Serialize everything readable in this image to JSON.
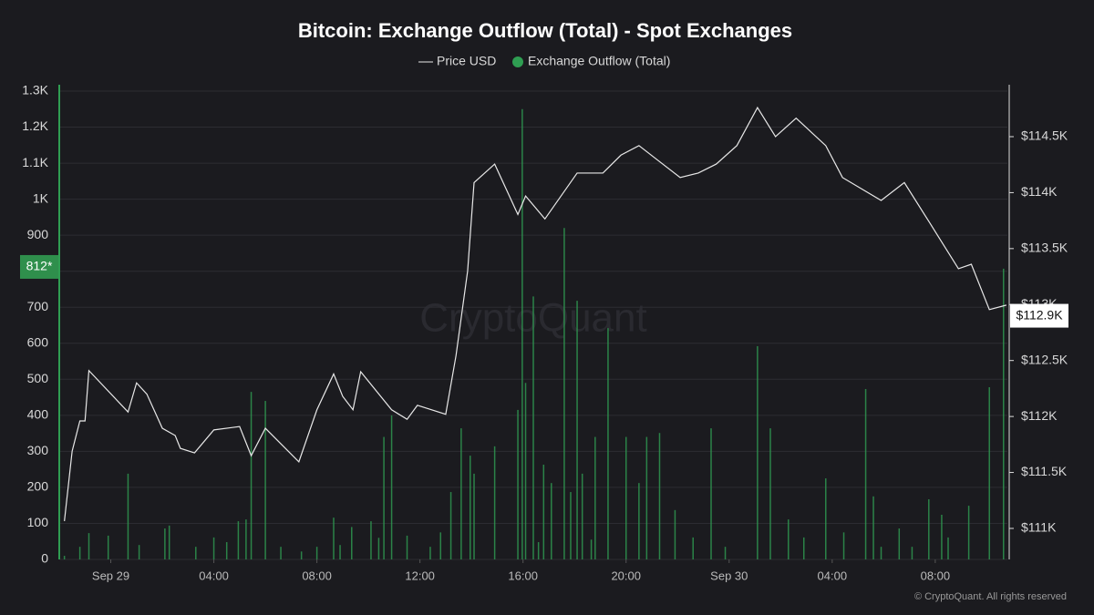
{
  "chart_data": {
    "type": "bar_line",
    "title": "Bitcoin: Exchange Outflow (Total) - Spot Exchanges",
    "watermark": "CryptoQuant",
    "footer": "© CryptoQuant. All rights reserved",
    "xlim": [
      -2,
      34.8
    ],
    "xticks": [
      {
        "value": 0,
        "label": "Sep 29"
      },
      {
        "value": 4,
        "label": "04:00"
      },
      {
        "value": 8,
        "label": "08:00"
      },
      {
        "value": 12,
        "label": "12:00"
      },
      {
        "value": 16,
        "label": "16:00"
      },
      {
        "value": 20,
        "label": "20:00"
      },
      {
        "value": 24,
        "label": "Sep 30"
      },
      {
        "value": 28,
        "label": "04:00"
      },
      {
        "value": 32,
        "label": "08:00"
      }
    ],
    "ylim": [
      0,
      1300
    ],
    "yticks": [
      0,
      100,
      200,
      300,
      400,
      500,
      600,
      700,
      800,
      900,
      {
        "value": 1000,
        "label": "1K"
      },
      {
        "value": 1100,
        "label": "1.1K"
      },
      {
        "value": 1200,
        "label": "1.2K"
      },
      {
        "value": 1300,
        "label": "1.3K"
      }
    ],
    "y2lim": [
      110723,
      114907
    ],
    "y2ticks": [
      {
        "value": 111000,
        "label": "$111K"
      },
      {
        "value": 111500,
        "label": "$111.5K"
      },
      {
        "value": 112000,
        "label": "$112K"
      },
      {
        "value": 112500,
        "label": "$112.5K"
      },
      {
        "value": 113000,
        "label": "$113K"
      },
      {
        "value": 113500,
        "label": "$113.5K"
      },
      {
        "value": 114000,
        "label": "$114K"
      },
      {
        "value": 114500,
        "label": "$114.5K"
      }
    ],
    "grid": true,
    "current_outflow": {
      "value": 812,
      "label": "812*"
    },
    "current_price": {
      "value": 112900,
      "label": "$112.9K"
    },
    "series": [
      {
        "name": "Price USD",
        "type": "line",
        "axis": "y2",
        "color": "#e8e8e8",
        "x": [
          -1.8,
          -1.5,
          -1.2,
          -1.0,
          -0.85,
          0.67,
          1.0,
          1.4,
          2.0,
          2.5,
          2.7,
          3.25,
          4.0,
          5.0,
          5.45,
          6.0,
          7.3,
          8.0,
          8.65,
          9.0,
          9.4,
          9.7,
          10.9,
          11.5,
          11.9,
          13.0,
          13.4,
          13.85,
          14.1,
          14.9,
          15.8,
          16.1,
          16.85,
          18.1,
          19.1,
          19.8,
          20.5,
          21.2,
          22.1,
          22.8,
          23.5,
          24.3,
          25.1,
          25.8,
          26.6,
          27.75,
          28.4,
          29.9,
          30.8,
          31.8,
          32.9,
          33.4,
          34.1,
          34.76
        ],
        "values": [
          111065,
          111690,
          111960,
          111960,
          112410,
          112040,
          112300,
          112200,
          111895,
          111830,
          111715,
          111675,
          111880,
          111910,
          111650,
          111895,
          111595,
          112060,
          112380,
          112180,
          112060,
          112400,
          112060,
          111975,
          112100,
          112020,
          112545,
          113300,
          114090,
          114255,
          113805,
          113970,
          113765,
          114175,
          114175,
          114335,
          114420,
          114295,
          114135,
          114175,
          114255,
          114420,
          114760,
          114500,
          114665,
          114420,
          114135,
          113930,
          114090,
          113725,
          113320,
          113360,
          112955,
          112995
        ]
      },
      {
        "name": "Exchange Outflow (Total)",
        "type": "bar",
        "axis": "y",
        "color": "#2f9e52",
        "x": [
          -1.8,
          -1.2,
          -0.85,
          -0.1,
          0.67,
          1.1,
          2.1,
          2.27,
          3.3,
          4.0,
          4.5,
          4.95,
          5.25,
          5.45,
          6.0,
          6.6,
          7.4,
          8.0,
          8.65,
          8.9,
          9.35,
          10.1,
          10.4,
          10.6,
          10.9,
          11.5,
          12.4,
          12.8,
          13.2,
          13.6,
          13.95,
          14.1,
          14.9,
          15.8,
          15.97,
          16.1,
          16.4,
          16.6,
          16.8,
          17.1,
          17.6,
          17.85,
          18.1,
          18.3,
          18.65,
          18.8,
          19.3,
          20.0,
          20.5,
          20.8,
          21.3,
          21.9,
          22.6,
          23.3,
          23.85,
          25.1,
          25.6,
          26.3,
          26.9,
          27.75,
          28.45,
          29.3,
          29.6,
          29.9,
          30.6,
          31.1,
          31.75,
          32.25,
          32.5,
          33.3,
          34.1,
          34.65
        ],
        "values": [
          10,
          35,
          73,
          66,
          238,
          40,
          86,
          94,
          35,
          61,
          48,
          106,
          111,
          465,
          440,
          35,
          22,
          35,
          116,
          40,
          90,
          106,
          60,
          340,
          400,
          66,
          35,
          75,
          187,
          364,
          288,
          238,
          314,
          415,
          1250,
          490,
          730,
          48,
          263,
          212,
          920,
          187,
          718,
          238,
          55,
          340,
          642,
          340,
          212,
          340,
          351,
          137,
          61,
          364,
          35,
          592,
          364,
          111,
          61,
          225,
          75,
          473,
          175,
          35,
          86,
          35,
          167,
          124,
          61,
          149,
          478,
          807
        ]
      }
    ]
  }
}
